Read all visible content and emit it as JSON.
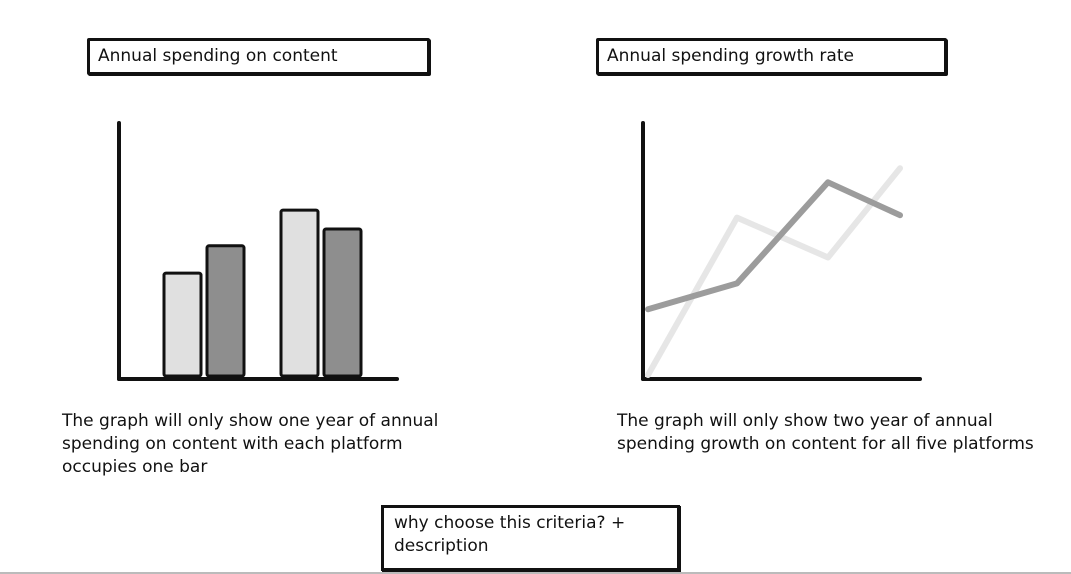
{
  "left_title": "Annual spending on content",
  "right_title": "Annual spending growth rate",
  "left_description": "The graph will only show one year of annual spending on content with each platform occupies one bar",
  "right_description": "The graph will only show two year of annual spending growth on content for all five platforms",
  "bottom_box": "why choose this criteria? + description",
  "colors": {
    "light": "#e0e0e0",
    "dark": "#8e8e8e",
    "line_light": "#e6e6e6",
    "line_dark": "#9c9c9c",
    "ink": "#111111"
  },
  "chart_data": [
    {
      "type": "bar",
      "title": "Annual spending on content",
      "categories": [
        "",
        ""
      ],
      "series": [
        {
          "values": [
            49,
            79
          ]
        },
        {
          "values": [
            62,
            70
          ]
        }
      ],
      "ylim": [
        0,
        100
      ],
      "grid": false
    },
    {
      "type": "line",
      "title": "Annual spending growth rate",
      "x": [
        0,
        1,
        2,
        3
      ],
      "series": [
        {
          "values": [
            0,
            67,
            50,
            88
          ]
        },
        {
          "values": [
            28,
            39,
            82,
            68
          ]
        }
      ],
      "ylim": [
        0,
        100
      ],
      "grid": false
    }
  ]
}
